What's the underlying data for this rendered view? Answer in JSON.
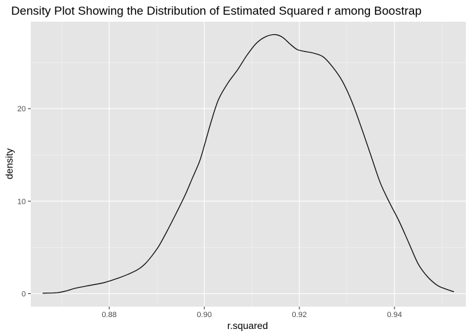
{
  "chart_data": {
    "type": "line",
    "title": "Density Plot Showing the Distribution of Estimated Squared r among Boostrap",
    "xlabel": "r.squared",
    "ylabel": "density",
    "xlim": [
      0.8635,
      0.955
    ],
    "ylim": [
      -1.4,
      29.4
    ],
    "x_ticks": [
      0.88,
      0.9,
      0.92,
      0.94
    ],
    "x_tick_labels": [
      "0.88",
      "0.90",
      "0.92",
      "0.94"
    ],
    "y_ticks": [
      0,
      10,
      20
    ],
    "y_tick_labels": [
      "0",
      "10",
      "20"
    ],
    "grid": true,
    "colors": {
      "panel": "#e5e5e5",
      "grid_major": "#ffffff",
      "grid_minor": "#f2f2f2",
      "line": "#000000"
    },
    "series": [
      {
        "x": [
          0.866,
          0.869,
          0.871,
          0.873,
          0.876,
          0.879,
          0.882,
          0.884,
          0.886,
          0.8875,
          0.889,
          0.8905,
          0.892,
          0.894,
          0.896,
          0.8975,
          0.899,
          0.9,
          0.9015,
          0.903,
          0.905,
          0.907,
          0.909,
          0.911,
          0.913,
          0.915,
          0.9165,
          0.918,
          0.9195,
          0.921,
          0.923,
          0.925,
          0.927,
          0.929,
          0.931,
          0.933,
          0.935,
          0.937,
          0.939,
          0.941,
          0.943,
          0.945,
          0.947,
          0.949,
          0.9505,
          0.9525
        ],
        "y": [
          0.05,
          0.1,
          0.3,
          0.6,
          0.9,
          1.2,
          1.7,
          2.1,
          2.6,
          3.2,
          4.1,
          5.2,
          6.6,
          8.6,
          10.7,
          12.5,
          14.3,
          16.0,
          18.7,
          21.0,
          22.8,
          24.2,
          25.8,
          27.1,
          27.8,
          28.0,
          27.7,
          27.0,
          26.4,
          26.2,
          26.0,
          25.6,
          24.5,
          23.0,
          20.8,
          18.0,
          15.0,
          12.0,
          9.8,
          7.8,
          5.5,
          3.2,
          1.8,
          0.9,
          0.55,
          0.2
        ]
      }
    ]
  }
}
